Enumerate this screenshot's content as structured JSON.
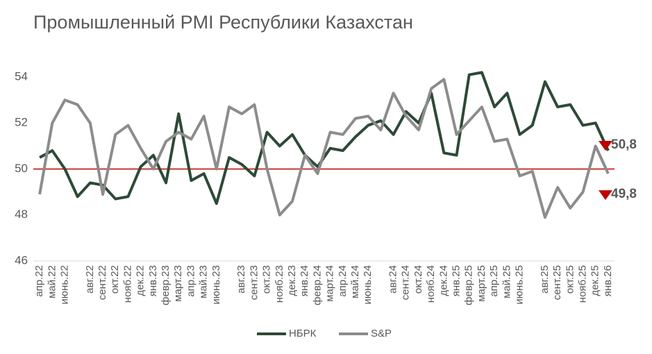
{
  "chart_data": {
    "type": "line",
    "title": "Промышленный PMI Республики Казахстан",
    "categories": [
      "апр.22",
      "май.22",
      "июнь.22",
      null,
      "авг.22",
      "сент.22",
      "окт.22",
      "нояб.22",
      "дек.22",
      "янв.23",
      "февр.23",
      "март.23",
      "апр.23",
      "май.23",
      "июнь.23",
      null,
      "авг.23",
      "сент.23",
      "окт.23",
      "нояб.23",
      "дек.23",
      "янв.24",
      "февр.24",
      "март.24",
      "апр.24",
      "май.24",
      "июнь.24",
      null,
      "авг.24",
      "сент.24",
      "окт.24",
      "нояб.24",
      "дек.24",
      "янв.25",
      "февр.25",
      "март.25",
      "апр.25",
      "май.25",
      "июнь.25",
      null,
      "авг.25",
      "сент.25",
      "окт.25",
      "нояб.25",
      "дек.25",
      "янв.26"
    ],
    "series": [
      {
        "name": "НБРК",
        "color": "#2d4a36",
        "values": [
          50.5,
          50.8,
          50.0,
          48.8,
          49.4,
          49.3,
          48.7,
          48.8,
          50.1,
          50.6,
          49.4,
          52.4,
          49.5,
          49.8,
          48.5,
          50.5,
          50.2,
          49.7,
          51.6,
          51.0,
          51.5,
          50.6,
          50.1,
          50.9,
          50.8,
          51.4,
          51.9,
          52.1,
          51.5,
          52.5,
          52.0,
          53.3,
          50.7,
          50.6,
          54.1,
          54.2,
          52.7,
          53.3,
          51.5,
          51.9,
          53.8,
          52.7,
          52.8,
          51.9,
          52.0,
          50.8
        ]
      },
      {
        "name": "S&P",
        "color": "#8c8c8c",
        "values": [
          48.9,
          52.0,
          53.0,
          52.8,
          52.0,
          48.9,
          51.5,
          51.9,
          50.9,
          50.0,
          51.2,
          51.6,
          51.3,
          52.3,
          50.0,
          52.7,
          52.4,
          52.8,
          50.0,
          48.0,
          48.6,
          50.6,
          49.8,
          51.6,
          51.5,
          52.2,
          52.3,
          51.7,
          53.3,
          52.3,
          51.7,
          53.5,
          53.9,
          51.5,
          52.1,
          52.7,
          51.2,
          51.3,
          49.7,
          49.9,
          47.9,
          49.2,
          48.3,
          49.0,
          51.0,
          49.8
        ]
      }
    ],
    "annotations": [
      "50,8",
      "49,8"
    ],
    "reference_line": {
      "value": 50,
      "color": "#c00000"
    },
    "ylim": [
      46,
      54
    ],
    "yticks": [
      46,
      48,
      50,
      52,
      54
    ],
    "grid": false,
    "legend": "bottom"
  }
}
